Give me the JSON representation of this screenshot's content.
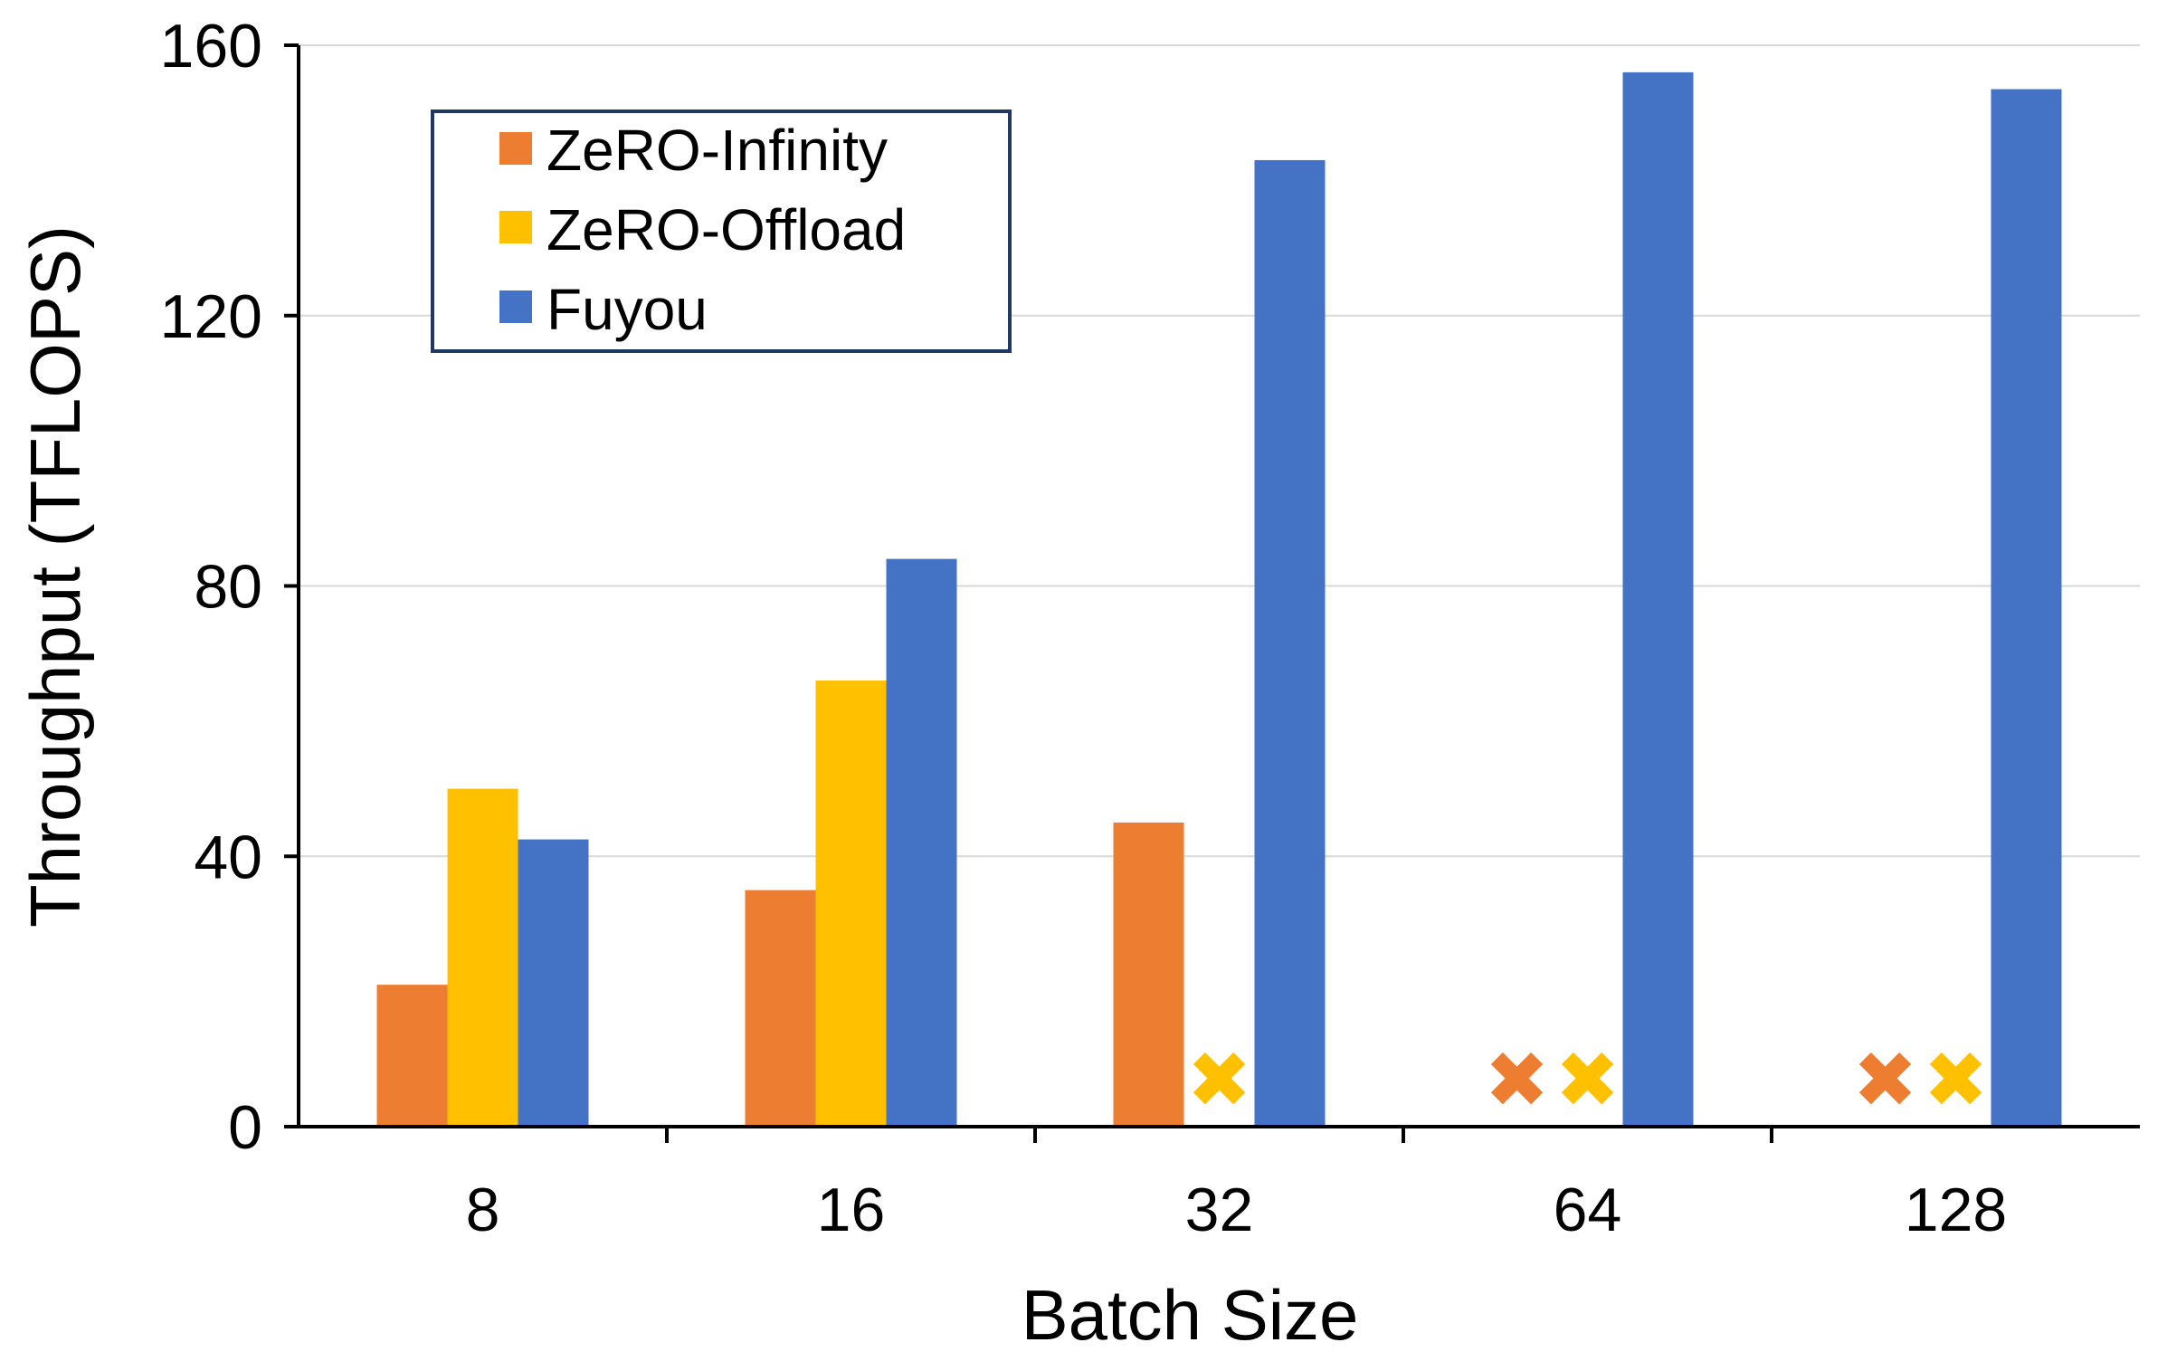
{
  "chart_data": {
    "type": "bar",
    "categories": [
      "8",
      "16",
      "32",
      "64",
      "128"
    ],
    "series": [
      {
        "name": "ZeRO-Infinity",
        "color": "#ED7D31",
        "values": [
          21,
          35,
          45,
          null,
          null
        ]
      },
      {
        "name": "ZeRO-Offload",
        "color": "#FFC000",
        "values": [
          50,
          66,
          null,
          null,
          null
        ]
      },
      {
        "name": "Fuyou",
        "color": "#4472C4",
        "values": [
          42.5,
          84,
          143,
          156,
          153.5
        ]
      }
    ],
    "failed_marker": "✖",
    "xlabel": "Batch Size",
    "ylabel": "Throughput (TFLOPS)",
    "ylim": [
      0,
      160
    ],
    "yticks": [
      "0",
      "40",
      "80",
      "120",
      "160"
    ],
    "grid": true,
    "legend_position": "top-left"
  }
}
